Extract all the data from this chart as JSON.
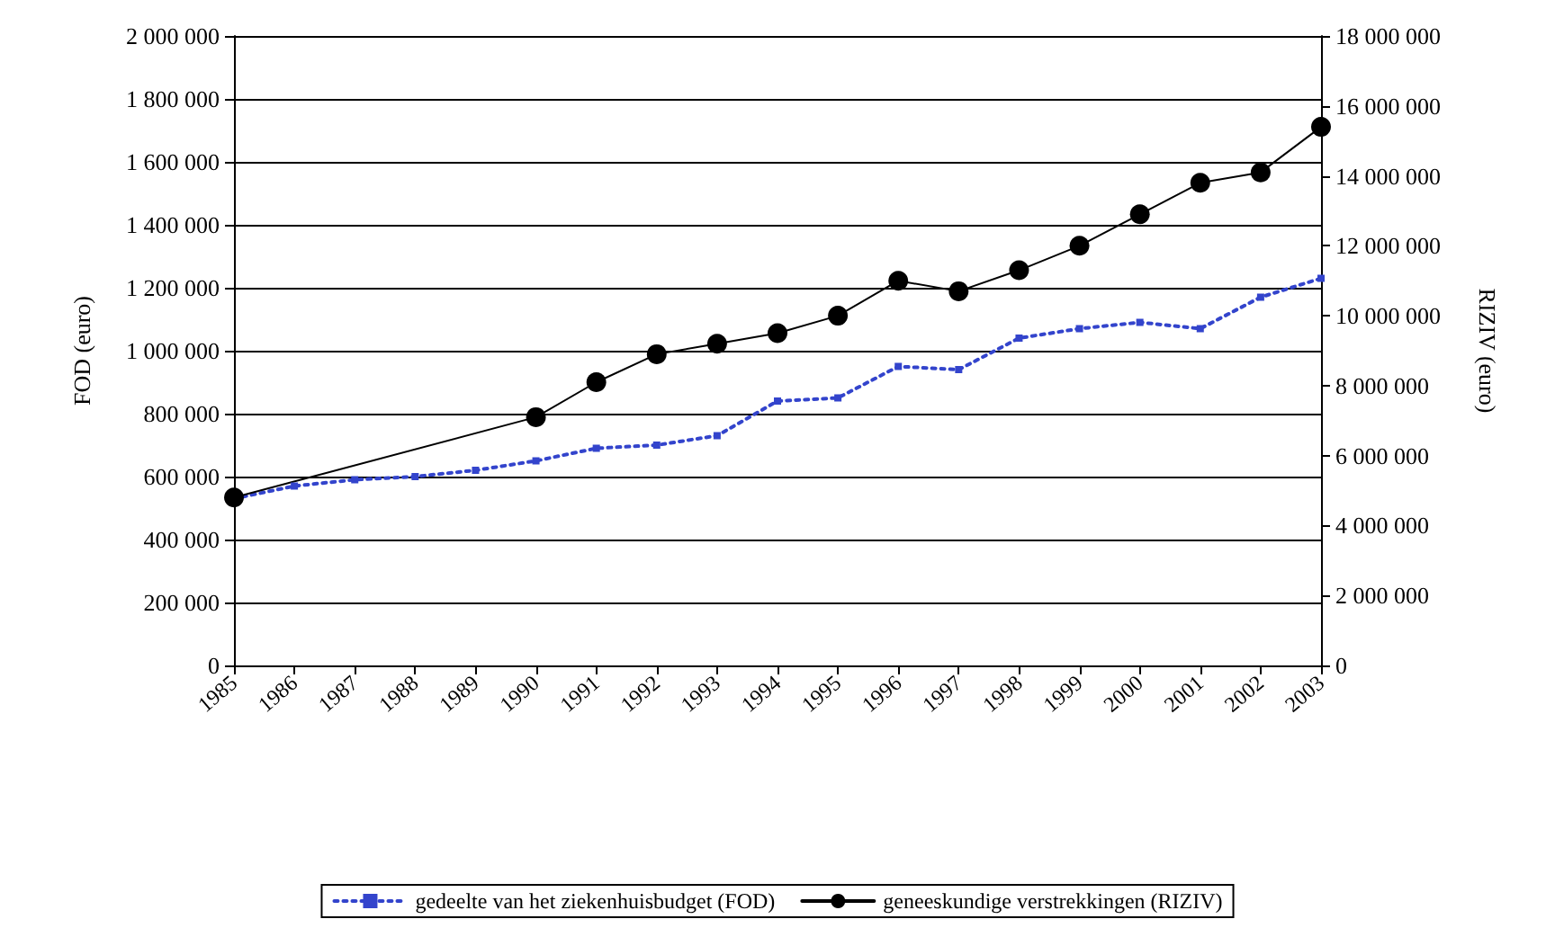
{
  "chart_data": {
    "type": "line",
    "ylabel": "FOD (euro)",
    "y2label": "RIZIV (euro)",
    "xlim": [
      1985,
      2003
    ],
    "xticks": [
      1985,
      1986,
      1987,
      1988,
      1989,
      1990,
      1991,
      1992,
      1993,
      1994,
      1995,
      1996,
      1997,
      1998,
      1999,
      2000,
      2001,
      2002,
      2003
    ],
    "ylim": [
      0,
      2000000
    ],
    "yticks": [
      {
        "value": 0,
        "label": "0"
      },
      {
        "value": 200000,
        "label": "200 000"
      },
      {
        "value": 400000,
        "label": "400 000"
      },
      {
        "value": 600000,
        "label": "600 000"
      },
      {
        "value": 800000,
        "label": "800 000"
      },
      {
        "value": 1000000,
        "label": "1 000 000"
      },
      {
        "value": 1200000,
        "label": "1 200 000"
      },
      {
        "value": 1400000,
        "label": "1 400 000"
      },
      {
        "value": 1600000,
        "label": "1 600 000"
      },
      {
        "value": 1800000,
        "label": "1 800 000"
      },
      {
        "value": 2000000,
        "label": "2 000 000"
      }
    ],
    "y2lim": [
      0,
      18000000
    ],
    "y2ticks": [
      {
        "value": 0,
        "label": "0"
      },
      {
        "value": 2000000,
        "label": "2 000 000"
      },
      {
        "value": 4000000,
        "label": "4 000 000"
      },
      {
        "value": 6000000,
        "label": "6 000 000"
      },
      {
        "value": 8000000,
        "label": "8 000 000"
      },
      {
        "value": 10000000,
        "label": "10 000 000"
      },
      {
        "value": 12000000,
        "label": "12 000 000"
      },
      {
        "value": 14000000,
        "label": "14 000 000"
      },
      {
        "value": 16000000,
        "label": "16 000 000"
      },
      {
        "value": 18000000,
        "label": "18 000 000"
      }
    ],
    "grid": "y",
    "legend": "bottom",
    "series": [
      {
        "name": "gedeelte van het ziekenhuisbudget (FOD)",
        "color": "#3344cc",
        "line_style": "dotted",
        "marker": "square",
        "x": [
          1985,
          1986,
          1987,
          1988,
          1989,
          1990,
          1991,
          1992,
          1993,
          1994,
          1995,
          1996,
          1997,
          1998,
          1999,
          2000,
          2001,
          2002,
          2003
        ],
        "values": [
          530000,
          570000,
          590000,
          600000,
          620000,
          650000,
          690000,
          700000,
          730000,
          840000,
          850000,
          950000,
          940000,
          1040000,
          1070000,
          1090000,
          1070000,
          1170000,
          1230000
        ]
      },
      {
        "name": "geneeskundige verstrekkingen (RIZIV)",
        "color": "#000000",
        "line_style": "solid",
        "marker": "circle",
        "axis": "y2",
        "x": [
          1985,
          1990,
          1991,
          1992,
          1993,
          1994,
          1995,
          1996,
          1997,
          1998,
          1999,
          2000,
          2001,
          2002,
          2003
        ],
        "values": [
          4800000,
          7100000,
          8100000,
          8900000,
          9200000,
          9500000,
          10000000,
          11000000,
          10700000,
          11300000,
          12000000,
          12900000,
          13800000,
          14100000,
          15400000
        ]
      }
    ]
  }
}
